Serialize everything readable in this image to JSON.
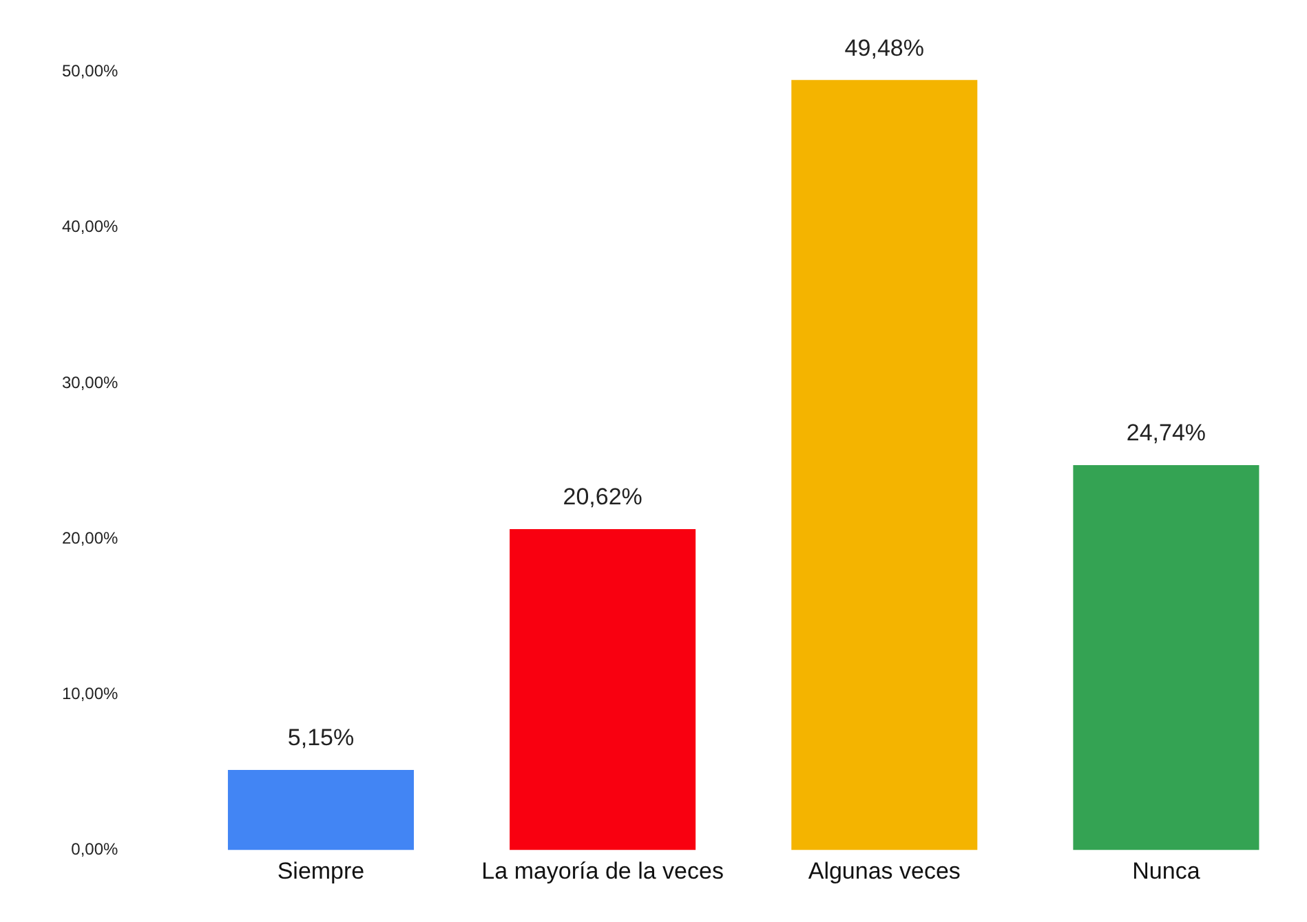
{
  "chart_data": {
    "type": "bar",
    "categories": [
      "Siempre",
      "La mayoría de la veces",
      "Algunas veces",
      "Nunca"
    ],
    "values": [
      5.15,
      20.62,
      49.48,
      24.74
    ],
    "colors": [
      "#4285f4",
      "#f90010",
      "#f4b400",
      "#34a353"
    ],
    "value_labels": [
      "5,15%",
      "20,62%",
      "49,48%",
      "24,74%"
    ],
    "ylim": [
      0,
      50
    ],
    "yticks": [
      {
        "value": 0,
        "label": "0,00%"
      },
      {
        "value": 10,
        "label": "10,00%"
      },
      {
        "value": 20,
        "label": "20,00%"
      },
      {
        "value": 30,
        "label": "30,00%"
      },
      {
        "value": 40,
        "label": "40,00%"
      },
      {
        "value": 50,
        "label": "50,00%"
      }
    ],
    "grid": false,
    "legend": false
  }
}
